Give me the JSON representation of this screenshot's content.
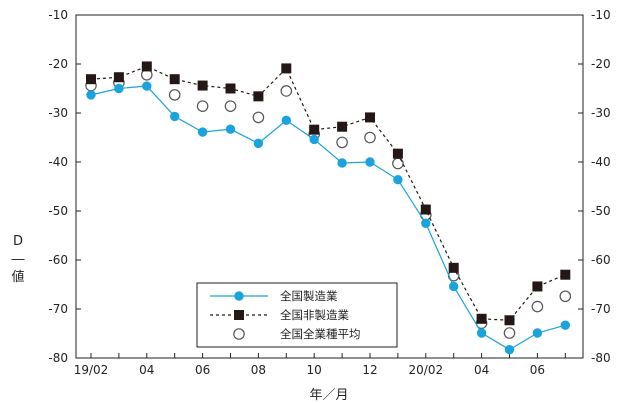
{
  "chart_data": {
    "type": "line",
    "ylabel": "D―値",
    "xlabel": "年／月",
    "ylim": [
      -80,
      -10
    ],
    "yticks": [
      -10,
      -20,
      -30,
      -40,
      -50,
      -60,
      -70,
      -80
    ],
    "ytick_labels": [
      "-10",
      "-20",
      "-30",
      "-40",
      "-50",
      "-60",
      "-70",
      "-80"
    ],
    "right_axis": true,
    "x": [
      "19/02",
      "19/03",
      "19/04",
      "19/05",
      "19/06",
      "19/07",
      "19/08",
      "19/09",
      "19/10",
      "19/11",
      "19/12",
      "20/01",
      "20/02",
      "20/03",
      "20/04",
      "20/05",
      "20/06",
      "20/07"
    ],
    "xtick_labels": [
      "19/02",
      "04",
      "06",
      "08",
      "10",
      "12",
      "20/02",
      "04",
      "06"
    ],
    "legend_position": "bottom-center",
    "series": [
      {
        "name": "全国製造業",
        "color": "#1aa3dc",
        "marker": "filled-circle",
        "line": "solid",
        "values": [
          -26.3,
          -25.0,
          -24.5,
          -30.7,
          -33.9,
          -33.3,
          -36.2,
          -31.5,
          -35.4,
          -40.2,
          -40.0,
          -43.6,
          -52.5,
          -65.4,
          -74.9,
          -78.3,
          -74.9,
          -73.3
        ]
      },
      {
        "name": "全国非製造業",
        "color": "#231815",
        "marker": "filled-square",
        "line": "dashed",
        "values": [
          -23.1,
          -22.7,
          -20.5,
          -23.1,
          -24.4,
          -25.0,
          -26.6,
          -20.9,
          -33.4,
          -32.8,
          -30.9,
          -38.3,
          -49.7,
          -61.6,
          -72.0,
          -72.3,
          -65.4,
          -63.0
        ]
      },
      {
        "name": "全国全業種平均",
        "color": "#555555",
        "marker": "open-circle",
        "line": "none",
        "values": [
          -24.4,
          -23.8,
          -22.2,
          -26.3,
          -28.6,
          -28.6,
          -30.9,
          -25.5,
          -34.3,
          -36.0,
          -35.0,
          -40.3,
          -50.8,
          -63.2,
          -72.9,
          -74.9,
          -69.5,
          -67.4
        ]
      }
    ]
  }
}
